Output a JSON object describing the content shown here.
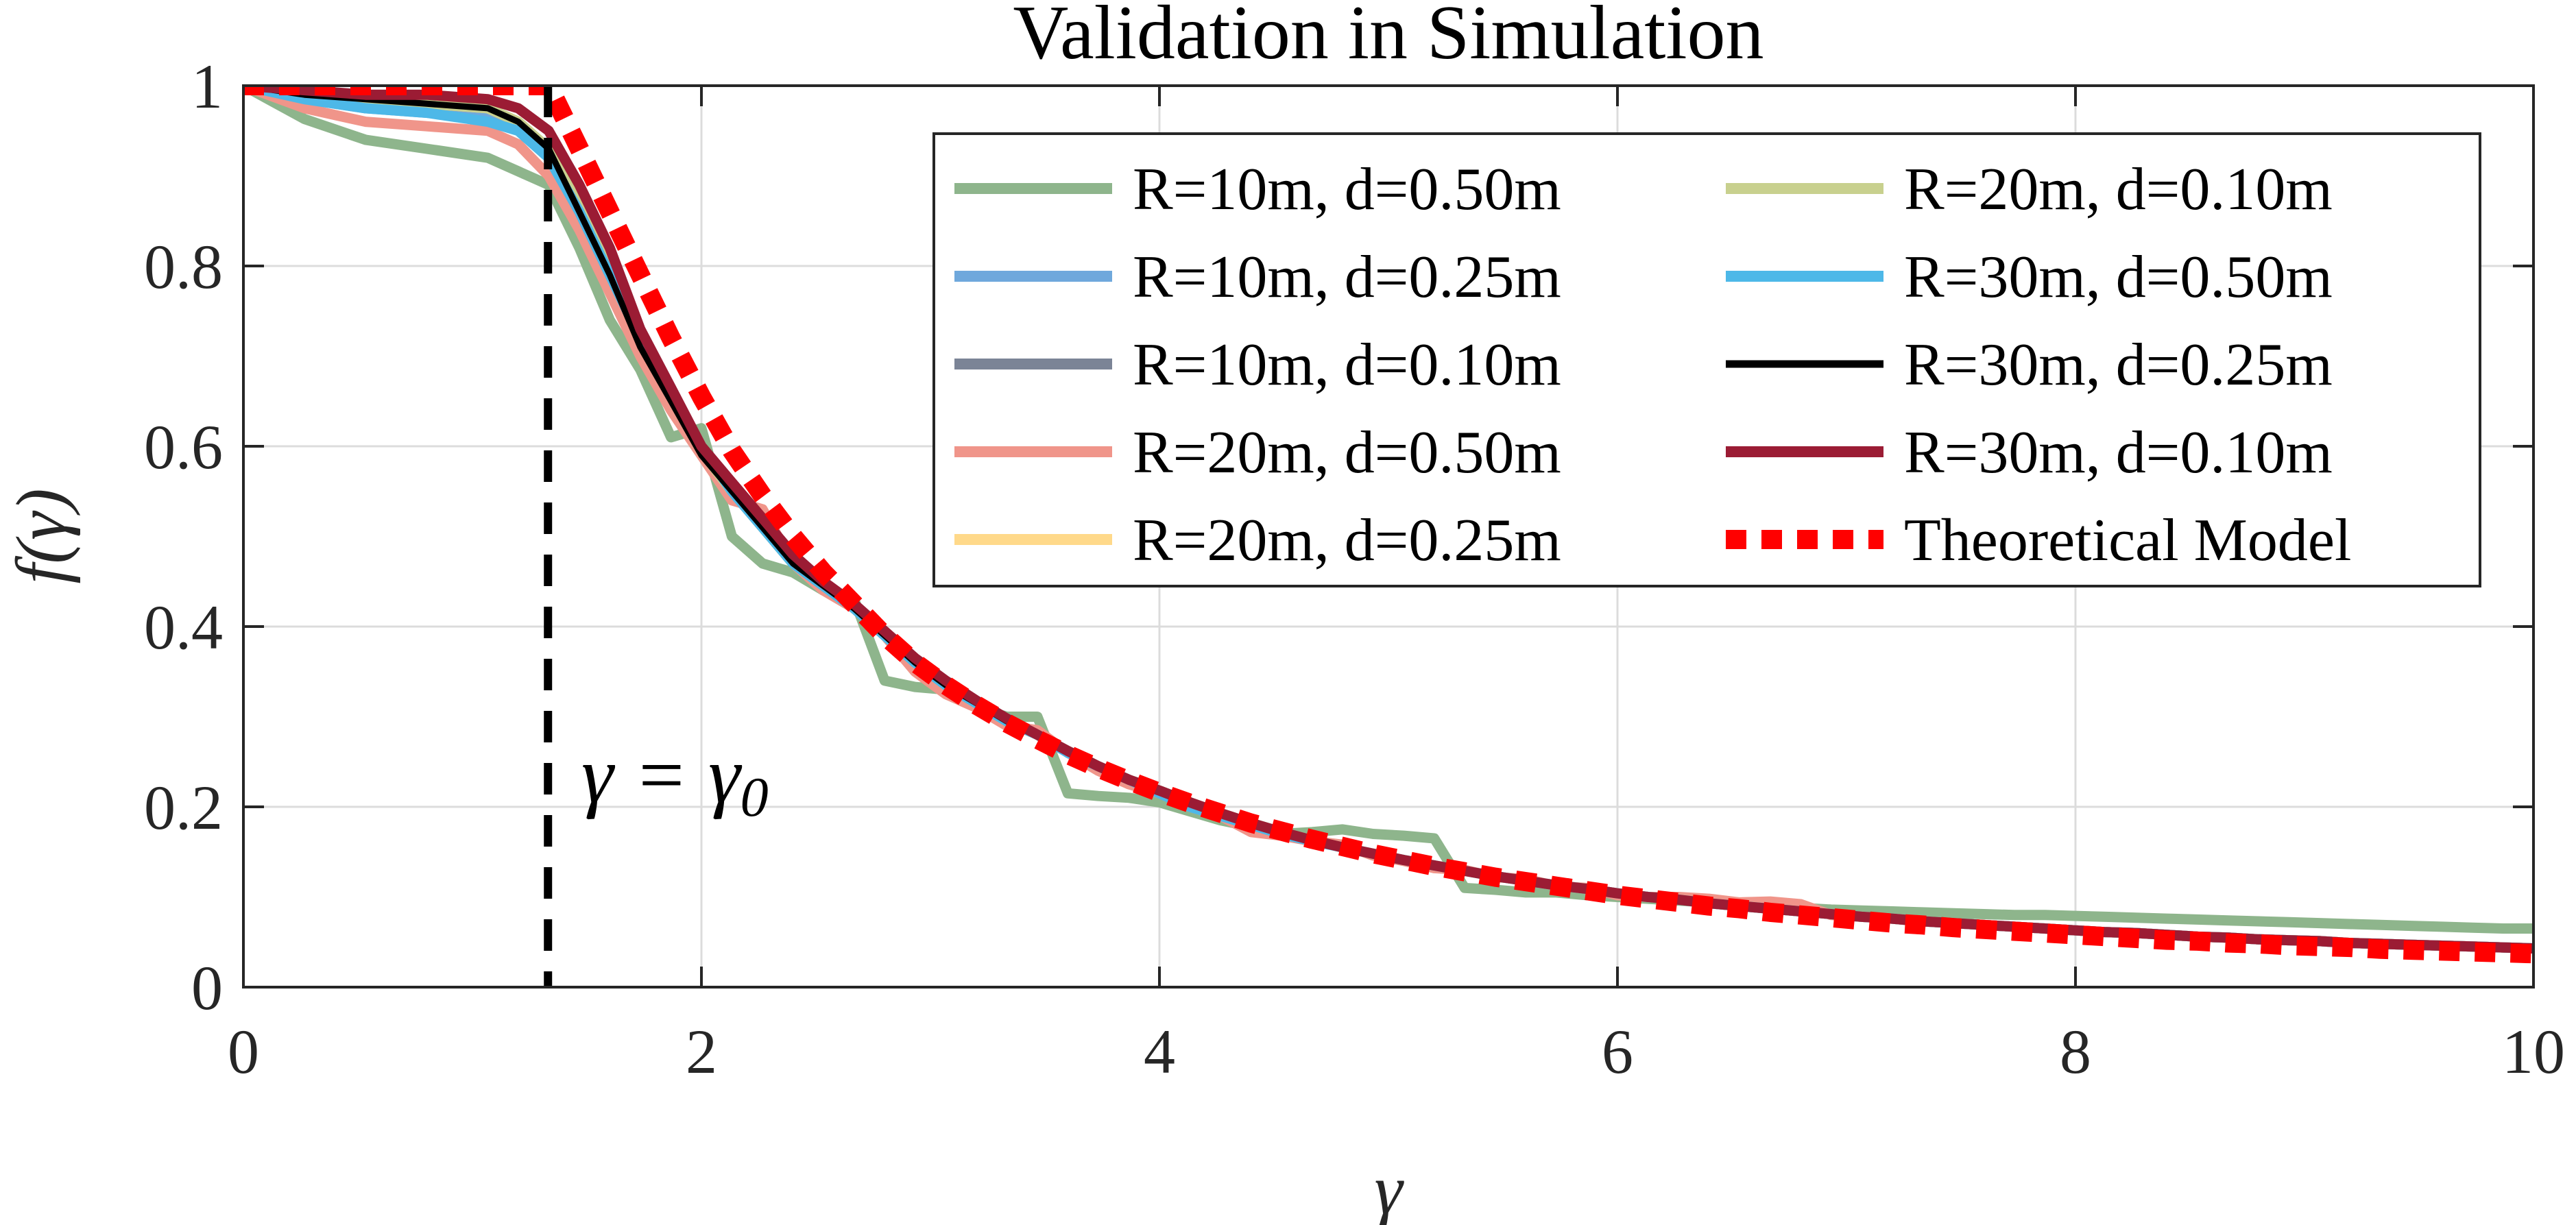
{
  "chart_data": {
    "type": "line",
    "title": "Validation in Simulation",
    "xlabel": "γ",
    "ylabel": "f(γ)",
    "xlim": [
      0,
      10
    ],
    "ylim": [
      0,
      1
    ],
    "grid": true,
    "legend_position": "top-right",
    "xticks": [
      0,
      2,
      4,
      6,
      8,
      10
    ],
    "xtick_labels": [
      "0",
      "2",
      "4",
      "6",
      "8",
      "10"
    ],
    "yticks": [
      0,
      0.2,
      0.4,
      0.6,
      0.8,
      1
    ],
    "ytick_labels": [
      "0",
      "0.2",
      "0.4",
      "0.6",
      "0.8",
      "1"
    ],
    "annotation": {
      "text": "γ = γ0",
      "main": "γ = γ",
      "subscript": "0",
      "gamma0": 1.33
    },
    "x": [
      0,
      0.267,
      0.533,
      0.8,
      1.067,
      1.2,
      1.333,
      1.467,
      1.6,
      1.733,
      1.867,
      2.0,
      2.133,
      2.267,
      2.4,
      2.533,
      2.667,
      2.8,
      2.933,
      3.067,
      3.2,
      3.333,
      3.467,
      3.6,
      3.733,
      3.867,
      4.0,
      4.133,
      4.267,
      4.4,
      4.533,
      4.667,
      4.8,
      4.933,
      5.067,
      5.2,
      5.333,
      5.467,
      5.6,
      5.733,
      5.867,
      6.0,
      6.133,
      6.267,
      6.4,
      6.533,
      6.667,
      6.8,
      6.933,
      7.067,
      7.2,
      7.333,
      7.467,
      7.6,
      7.733,
      7.867,
      8.0,
      8.133,
      8.267,
      8.4,
      8.533,
      8.667,
      8.8,
      8.933,
      9.067,
      9.2,
      9.333,
      9.467,
      9.6,
      9.733,
      9.867,
      10.0
    ],
    "series": [
      {
        "name": "R=10m, d=0.50m",
        "color": "#8eb58c",
        "values": [
          1.0,
          0.963,
          0.94,
          0.93,
          0.92,
          0.905,
          0.89,
          0.82,
          0.74,
          0.685,
          0.61,
          0.62,
          0.5,
          0.47,
          0.46,
          0.44,
          0.43,
          0.34,
          0.333,
          0.33,
          0.31,
          0.3,
          0.3,
          0.215,
          0.212,
          0.21,
          0.205,
          0.195,
          0.185,
          0.178,
          0.17,
          0.172,
          0.175,
          0.17,
          0.168,
          0.165,
          0.11,
          0.108,
          0.105,
          0.105,
          0.102,
          0.1,
          0.098,
          0.096,
          0.094,
          0.092,
          0.09,
          0.088,
          0.086,
          0.085,
          0.084,
          0.083,
          0.082,
          0.081,
          0.08,
          0.08,
          0.079,
          0.078,
          0.077,
          0.076,
          0.075,
          0.074,
          0.073,
          0.072,
          0.071,
          0.07,
          0.069,
          0.068,
          0.067,
          0.066,
          0.065,
          0.065
        ]
      },
      {
        "name": "R=10m, d=0.25m",
        "color": "#6fa8dc",
        "values": [
          1.0,
          0.985,
          0.975,
          0.97,
          0.965,
          0.955,
          0.92,
          0.86,
          0.8,
          0.72,
          0.66,
          0.6,
          0.55,
          0.51,
          0.47,
          0.445,
          0.42,
          0.39,
          0.36,
          0.335,
          0.315,
          0.295,
          0.28,
          0.262,
          0.245,
          0.23,
          0.218,
          0.205,
          0.193,
          0.182,
          0.172,
          0.163,
          0.155,
          0.148,
          0.141,
          0.135,
          0.129,
          0.123,
          0.118,
          0.113,
          0.109,
          0.104,
          0.1,
          0.097,
          0.093,
          0.09,
          0.087,
          0.084,
          0.081,
          0.078,
          0.076,
          0.073,
          0.071,
          0.069,
          0.067,
          0.065,
          0.063,
          0.061,
          0.06,
          0.058,
          0.056,
          0.055,
          0.053,
          0.052,
          0.051,
          0.049,
          0.048,
          0.047,
          0.046,
          0.045,
          0.044,
          0.043
        ]
      },
      {
        "name": "R=10m, d=0.10m",
        "color": "#7b8496",
        "values": [
          1.0,
          0.99,
          0.985,
          0.98,
          0.975,
          0.96,
          0.93,
          0.87,
          0.8,
          0.72,
          0.655,
          0.595,
          0.55,
          0.51,
          0.47,
          0.445,
          0.42,
          0.39,
          0.36,
          0.335,
          0.315,
          0.295,
          0.28,
          0.262,
          0.245,
          0.23,
          0.218,
          0.205,
          0.193,
          0.182,
          0.172,
          0.163,
          0.155,
          0.148,
          0.141,
          0.135,
          0.129,
          0.123,
          0.118,
          0.113,
          0.109,
          0.104,
          0.1,
          0.097,
          0.093,
          0.09,
          0.087,
          0.084,
          0.081,
          0.078,
          0.076,
          0.073,
          0.071,
          0.069,
          0.067,
          0.065,
          0.063,
          0.061,
          0.06,
          0.058,
          0.056,
          0.055,
          0.053,
          0.052,
          0.051,
          0.049,
          0.048,
          0.047,
          0.046,
          0.045,
          0.044,
          0.043
        ]
      },
      {
        "name": "R=20m, d=0.50m",
        "color": "#f0958a",
        "values": [
          1.0,
          0.975,
          0.96,
          0.955,
          0.95,
          0.935,
          0.9,
          0.84,
          0.77,
          0.7,
          0.64,
          0.59,
          0.54,
          0.53,
          0.47,
          0.44,
          0.42,
          0.39,
          0.35,
          0.325,
          0.31,
          0.29,
          0.285,
          0.26,
          0.24,
          0.225,
          0.215,
          0.2,
          0.19,
          0.172,
          0.168,
          0.162,
          0.158,
          0.146,
          0.14,
          0.132,
          0.13,
          0.122,
          0.12,
          0.112,
          0.11,
          0.102,
          0.1,
          0.1,
          0.098,
          0.094,
          0.095,
          0.092,
          0.08,
          0.078,
          0.076,
          0.073,
          0.071,
          0.069,
          0.067,
          0.065,
          0.063,
          0.061,
          0.06,
          0.058,
          0.056,
          0.055,
          0.053,
          0.052,
          0.051,
          0.049,
          0.048,
          0.047,
          0.046,
          0.045,
          0.044,
          0.043
        ]
      },
      {
        "name": "R=20m, d=0.25m",
        "color": "#ffd98a",
        "values": [
          1.0,
          0.99,
          0.985,
          0.98,
          0.975,
          0.96,
          0.93,
          0.87,
          0.8,
          0.72,
          0.655,
          0.595,
          0.55,
          0.51,
          0.47,
          0.445,
          0.42,
          0.39,
          0.36,
          0.335,
          0.315,
          0.295,
          0.28,
          0.262,
          0.245,
          0.23,
          0.218,
          0.205,
          0.193,
          0.182,
          0.172,
          0.163,
          0.155,
          0.148,
          0.141,
          0.135,
          0.129,
          0.123,
          0.118,
          0.113,
          0.109,
          0.104,
          0.1,
          0.097,
          0.093,
          0.09,
          0.087,
          0.084,
          0.081,
          0.078,
          0.076,
          0.073,
          0.071,
          0.069,
          0.067,
          0.065,
          0.063,
          0.061,
          0.06,
          0.058,
          0.056,
          0.055,
          0.053,
          0.052,
          0.051,
          0.049,
          0.048,
          0.047,
          0.046,
          0.045,
          0.044,
          0.043
        ]
      },
      {
        "name": "R=20m, d=0.10m",
        "color": "#c8d08e",
        "values": [
          1.0,
          0.99,
          0.985,
          0.98,
          0.975,
          0.96,
          0.93,
          0.87,
          0.8,
          0.72,
          0.655,
          0.595,
          0.55,
          0.51,
          0.47,
          0.445,
          0.42,
          0.39,
          0.36,
          0.335,
          0.315,
          0.295,
          0.28,
          0.262,
          0.245,
          0.23,
          0.218,
          0.205,
          0.193,
          0.182,
          0.172,
          0.163,
          0.155,
          0.148,
          0.141,
          0.135,
          0.129,
          0.123,
          0.118,
          0.113,
          0.109,
          0.104,
          0.1,
          0.097,
          0.093,
          0.09,
          0.087,
          0.084,
          0.081,
          0.078,
          0.076,
          0.073,
          0.071,
          0.069,
          0.067,
          0.065,
          0.063,
          0.061,
          0.06,
          0.058,
          0.056,
          0.055,
          0.053,
          0.052,
          0.051,
          0.049,
          0.048,
          0.047,
          0.046,
          0.045,
          0.044,
          0.043
        ]
      },
      {
        "name": "R=30m, d=0.50m",
        "color": "#4db8e8",
        "values": [
          1.0,
          0.985,
          0.975,
          0.97,
          0.96,
          0.95,
          0.92,
          0.86,
          0.79,
          0.72,
          0.655,
          0.6,
          0.55,
          0.51,
          0.47,
          0.445,
          0.42,
          0.39,
          0.36,
          0.335,
          0.315,
          0.295,
          0.28,
          0.26,
          0.245,
          0.23,
          0.215,
          0.2,
          0.19,
          0.18,
          0.17,
          0.162,
          0.155,
          0.148,
          0.141,
          0.135,
          0.129,
          0.123,
          0.118,
          0.113,
          0.109,
          0.104,
          0.1,
          0.097,
          0.093,
          0.09,
          0.087,
          0.084,
          0.081,
          0.078,
          0.076,
          0.073,
          0.071,
          0.069,
          0.067,
          0.065,
          0.063,
          0.061,
          0.06,
          0.058,
          0.056,
          0.055,
          0.053,
          0.052,
          0.051,
          0.049,
          0.048,
          0.047,
          0.046,
          0.045,
          0.044,
          0.043
        ]
      },
      {
        "name": "R=30m, d=0.25m",
        "color": "#000000",
        "values": [
          1.0,
          0.99,
          0.985,
          0.98,
          0.975,
          0.96,
          0.93,
          0.86,
          0.79,
          0.71,
          0.65,
          0.59,
          0.55,
          0.51,
          0.47,
          0.445,
          0.42,
          0.39,
          0.36,
          0.335,
          0.315,
          0.295,
          0.28,
          0.262,
          0.245,
          0.23,
          0.218,
          0.205,
          0.193,
          0.182,
          0.172,
          0.163,
          0.155,
          0.148,
          0.141,
          0.135,
          0.129,
          0.123,
          0.118,
          0.113,
          0.109,
          0.104,
          0.1,
          0.097,
          0.093,
          0.09,
          0.087,
          0.084,
          0.081,
          0.078,
          0.076,
          0.073,
          0.071,
          0.069,
          0.067,
          0.065,
          0.063,
          0.061,
          0.06,
          0.058,
          0.056,
          0.055,
          0.053,
          0.052,
          0.051,
          0.049,
          0.048,
          0.047,
          0.046,
          0.045,
          0.044,
          0.043
        ]
      },
      {
        "name": "R=30m, d=0.10m",
        "color": "#9b1c34",
        "values": [
          1.0,
          0.995,
          0.99,
          0.99,
          0.985,
          0.975,
          0.95,
          0.89,
          0.82,
          0.73,
          0.665,
          0.6,
          0.56,
          0.52,
          0.48,
          0.45,
          0.425,
          0.395,
          0.365,
          0.34,
          0.318,
          0.298,
          0.28,
          0.262,
          0.245,
          0.23,
          0.218,
          0.205,
          0.193,
          0.182,
          0.172,
          0.163,
          0.155,
          0.148,
          0.141,
          0.135,
          0.129,
          0.123,
          0.118,
          0.113,
          0.109,
          0.104,
          0.1,
          0.097,
          0.093,
          0.09,
          0.087,
          0.084,
          0.081,
          0.078,
          0.076,
          0.073,
          0.071,
          0.069,
          0.067,
          0.065,
          0.063,
          0.061,
          0.06,
          0.058,
          0.056,
          0.055,
          0.053,
          0.052,
          0.051,
          0.049,
          0.048,
          0.047,
          0.046,
          0.045,
          0.044,
          0.043
        ]
      },
      {
        "name": "Theoretical Model",
        "color": "#ff0000",
        "dashed": true,
        "values": [
          1.0,
          1.0,
          1.0,
          1.0,
          1.0,
          1.0,
          1.0,
          0.93,
          0.86,
          0.79,
          0.72,
          0.655,
          0.595,
          0.545,
          0.5,
          0.46,
          0.425,
          0.39,
          0.36,
          0.335,
          0.313,
          0.293,
          0.275,
          0.258,
          0.243,
          0.229,
          0.216,
          0.204,
          0.193,
          0.182,
          0.173,
          0.164,
          0.156,
          0.148,
          0.141,
          0.134,
          0.128,
          0.122,
          0.117,
          0.112,
          0.107,
          0.102,
          0.098,
          0.094,
          0.09,
          0.087,
          0.083,
          0.08,
          0.077,
          0.074,
          0.071,
          0.069,
          0.066,
          0.064,
          0.062,
          0.06,
          0.058,
          0.056,
          0.054,
          0.052,
          0.051,
          0.049,
          0.048,
          0.046,
          0.045,
          0.044,
          0.042,
          0.041,
          0.04,
          0.039,
          0.038,
          0.037
        ]
      }
    ]
  }
}
